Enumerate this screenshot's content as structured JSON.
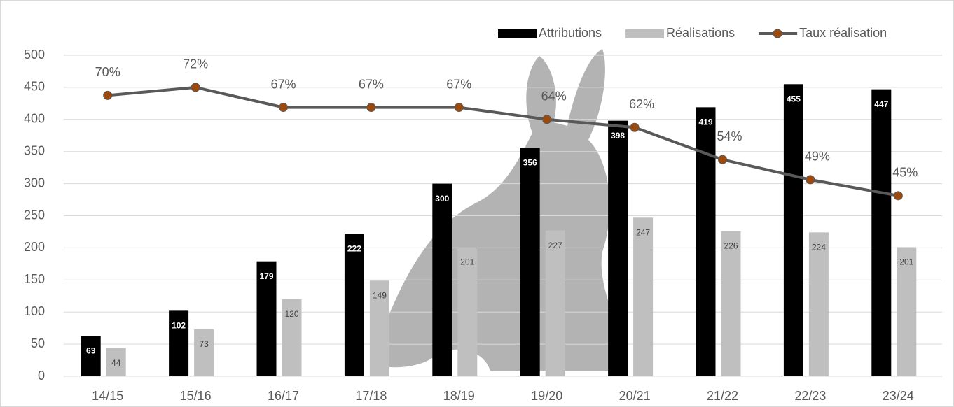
{
  "chart_data": {
    "type": "bar",
    "categories": [
      "14/15",
      "15/16",
      "16/17",
      "17/18",
      "18/19",
      "19/20",
      "20/21",
      "21/22",
      "22/23",
      "23/24"
    ],
    "series": [
      {
        "name": "Attributions",
        "type": "bar",
        "color": "#000000",
        "values": [
          63,
          102,
          179,
          222,
          300,
          356,
          398,
          419,
          455,
          447
        ]
      },
      {
        "name": "Réalisations",
        "type": "bar",
        "color": "#bfbfbf",
        "values": [
          44,
          73,
          120,
          149,
          201,
          227,
          247,
          226,
          224,
          201
        ]
      },
      {
        "name": "Taux réalisation",
        "type": "line",
        "axis": "y2",
        "color": "#595959",
        "marker_color": "#9c4a0e",
        "values": [
          70,
          72,
          67,
          67,
          67,
          64,
          62,
          54,
          49,
          45
        ],
        "value_labels": [
          "70%",
          "72%",
          "67%",
          "67%",
          "67%",
          "64%",
          "62%",
          "54%",
          "49%",
          "45%"
        ]
      }
    ],
    "ylim": [
      0,
      500
    ],
    "yticks": [
      0,
      50,
      100,
      150,
      200,
      250,
      300,
      350,
      400,
      450,
      500
    ],
    "y2lim": [
      0,
      80
    ],
    "grid": true,
    "legend": "top-right"
  }
}
